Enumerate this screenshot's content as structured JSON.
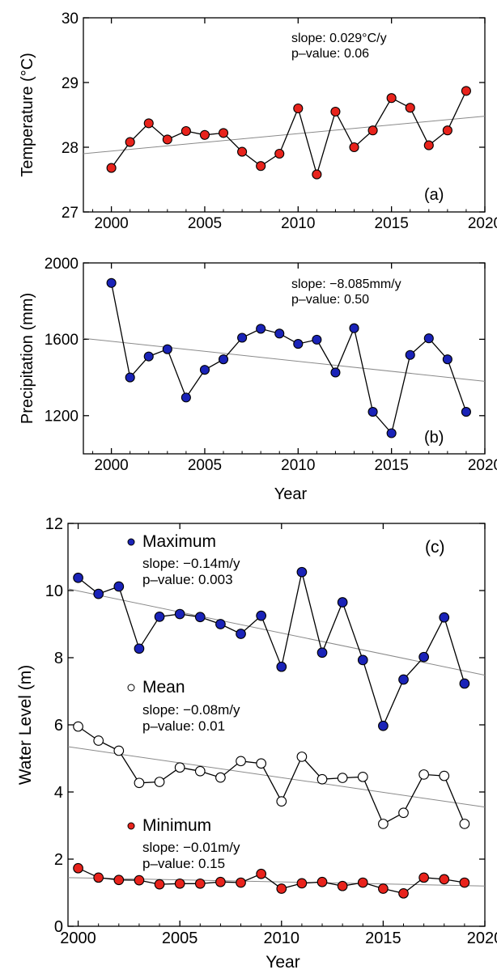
{
  "chart_data": [
    {
      "id": "a",
      "type": "line",
      "panel_label": "(a)",
      "xlabel": "",
      "ylabel": "Temperature (°C)",
      "xlim": [
        1998.5,
        2020
      ],
      "ylim": [
        27,
        30
      ],
      "xticks": [
        2000,
        2005,
        2010,
        2015,
        2020
      ],
      "yticks": [
        27,
        28,
        29,
        30
      ],
      "xtick_labels": [
        "2000",
        "2005",
        "2010",
        "2015",
        "2020"
      ],
      "ytick_labels": [
        "27",
        "28",
        "29",
        "30"
      ],
      "grid": false,
      "x": [
        2000,
        2001,
        2002,
        2003,
        2004,
        2005,
        2006,
        2007,
        2008,
        2009,
        2010,
        2011,
        2012,
        2013,
        2014,
        2015,
        2016,
        2017,
        2018,
        2019
      ],
      "series": [
        {
          "values": [
            27.68,
            28.08,
            28.37,
            28.12,
            28.25,
            28.19,
            28.22,
            27.93,
            27.71,
            27.9,
            28.6,
            27.58,
            28.55,
            28.0,
            28.26,
            28.76,
            28.61,
            28.03,
            28.26,
            28.87
          ],
          "marker_color": "#e8231c",
          "trend": {
            "x": [
              1998.5,
              2020
            ],
            "y": [
              27.9,
              28.48
            ]
          },
          "annotations": [
            "slope: 0.029°C/y",
            "p–value: 0.06"
          ]
        }
      ]
    },
    {
      "id": "b",
      "type": "line",
      "panel_label": "(b)",
      "xlabel": "Year",
      "ylabel": "Precipitation (mm)",
      "xlim": [
        1998.5,
        2020
      ],
      "ylim": [
        1000,
        2000
      ],
      "xticks": [
        2000,
        2005,
        2010,
        2015,
        2020
      ],
      "yticks": [
        1200,
        1600,
        2000
      ],
      "xtick_labels": [
        "2000",
        "2005",
        "2010",
        "2015",
        "2020"
      ],
      "ytick_labels": [
        "1200",
        "1600",
        "2000"
      ],
      "grid": false,
      "x": [
        2000,
        2001,
        2002,
        2003,
        2004,
        2005,
        2006,
        2007,
        2008,
        2009,
        2010,
        2011,
        2012,
        2013,
        2014,
        2015,
        2016,
        2017,
        2018,
        2019
      ],
      "series": [
        {
          "values": [
            1895,
            1400,
            1510,
            1548,
            1295,
            1440,
            1495,
            1608,
            1655,
            1630,
            1576,
            1598,
            1426,
            1658,
            1220,
            1108,
            1518,
            1605,
            1495,
            1220
          ],
          "marker_color": "#1a23b8",
          "trend": {
            "x": [
              1998.5,
              2020
            ],
            "y": [
              1605,
              1380
            ]
          },
          "annotations": [
            "slope: −8.085mm/y",
            "p–value: 0.50"
          ]
        }
      ]
    },
    {
      "id": "c",
      "type": "line",
      "panel_label": "(c)",
      "xlabel": "Year",
      "ylabel": "Water Level (m)",
      "xlim": [
        1999.5,
        2020
      ],
      "ylim": [
        0,
        12
      ],
      "xticks": [
        2000,
        2005,
        2010,
        2015,
        2020
      ],
      "yticks": [
        0,
        2,
        4,
        6,
        8,
        10,
        12
      ],
      "xtick_labels": [
        "2000",
        "2005",
        "2010",
        "2015",
        "2020"
      ],
      "ytick_labels": [
        "0",
        "2",
        "4",
        "6",
        "8",
        "10",
        "12"
      ],
      "grid": false,
      "x": [
        2000,
        2001,
        2002,
        2003,
        2004,
        2005,
        2006,
        2007,
        2008,
        2009,
        2010,
        2011,
        2012,
        2013,
        2014,
        2015,
        2016,
        2017,
        2018,
        2019
      ],
      "series": [
        {
          "name": "Maximum",
          "values": [
            10.38,
            9.9,
            10.12,
            8.27,
            9.22,
            9.3,
            9.21,
            9.0,
            8.71,
            9.25,
            7.73,
            10.55,
            8.15,
            9.65,
            7.93,
            5.97,
            7.35,
            8.02,
            9.2,
            7.23
          ],
          "marker_color": "#1a23b8",
          "trend": {
            "x": [
              1999.5,
              2020
            ],
            "y": [
              10.05,
              7.48
            ]
          },
          "annotations": [
            "slope: −0.14m/y",
            "p–value: 0.003"
          ]
        },
        {
          "name": "Mean",
          "values": [
            5.95,
            5.53,
            5.23,
            4.27,
            4.3,
            4.73,
            4.62,
            4.43,
            4.92,
            4.85,
            3.72,
            5.05,
            4.38,
            4.42,
            4.45,
            3.05,
            3.38,
            4.52,
            4.48,
            3.05
          ],
          "marker_color": "#ffffff",
          "trend": {
            "x": [
              1999.5,
              2020
            ],
            "y": [
              5.35,
              3.55
            ]
          },
          "annotations": [
            "slope: −0.08m/y",
            "p–value: 0.01"
          ]
        },
        {
          "name": "Minimum",
          "values": [
            1.73,
            1.45,
            1.38,
            1.37,
            1.25,
            1.27,
            1.27,
            1.32,
            1.3,
            1.56,
            1.12,
            1.28,
            1.32,
            1.2,
            1.3,
            1.12,
            0.98,
            1.45,
            1.4,
            1.3
          ],
          "marker_color": "#e8231c",
          "trend": {
            "x": [
              1999.5,
              2020
            ],
            "y": [
              1.45,
              1.2
            ]
          },
          "annotations": [
            "slope: −0.01m/y",
            "p–value: 0.15"
          ]
        }
      ]
    }
  ]
}
